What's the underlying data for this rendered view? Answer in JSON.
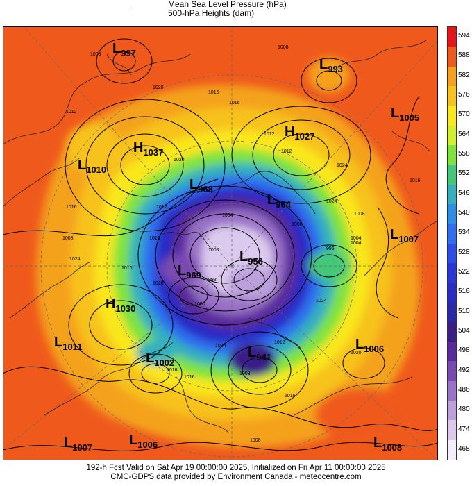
{
  "legend": {
    "line1": "Mean Sea Level Pressure (hPa)",
    "line2": "500-hPa Heights (dam)"
  },
  "colorbar": {
    "ticks": [
      "594",
      "588",
      "582",
      "576",
      "570",
      "564",
      "558",
      "552",
      "546",
      "540",
      "534",
      "528",
      "522",
      "516",
      "510",
      "504",
      "498",
      "492",
      "486",
      "480",
      "474",
      "468"
    ],
    "colors": [
      "#e8141c",
      "#ef5a1c",
      "#f4a21e",
      "#f7c21f",
      "#f9e71f",
      "#d2ef2c",
      "#7fe33c",
      "#45c77a",
      "#36b0bd",
      "#2f8ee8",
      "#2f6ef0",
      "#2b4ee8",
      "#2a36d8",
      "#2a2bc4",
      "#2a27a8",
      "#3a1e88",
      "#5a2a9c",
      "#7a4ab4",
      "#9a72c8",
      "#bca0dc",
      "#dccaee",
      "#f4eefa"
    ]
  },
  "systems": [
    {
      "type": "L",
      "value": "997"
    },
    {
      "type": "L",
      "value": "993"
    },
    {
      "type": "L",
      "value": "1005"
    },
    {
      "type": "H",
      "value": "1027"
    },
    {
      "type": "H",
      "value": "1037"
    },
    {
      "type": "L",
      "value": "1010"
    },
    {
      "type": "L",
      "value": "968"
    },
    {
      "type": "L",
      "value": "964"
    },
    {
      "type": "L",
      "value": "1007"
    },
    {
      "type": "L",
      "value": "956"
    },
    {
      "type": "L",
      "value": "969"
    },
    {
      "type": "H",
      "value": "1030"
    },
    {
      "type": "L",
      "value": "1011"
    },
    {
      "type": "L",
      "value": "1002"
    },
    {
      "type": "L",
      "value": "941"
    },
    {
      "type": "L",
      "value": "1006"
    },
    {
      "type": "L",
      "value": "1007"
    },
    {
      "type": "L",
      "value": "1006"
    },
    {
      "type": "L",
      "value": "1008"
    }
  ],
  "isobar_labels": [
    "1008",
    "1008",
    "1016",
    "1024",
    "1020",
    "1012",
    "1012",
    "1016",
    "1024",
    "1016",
    "1016",
    "1012",
    "1008",
    "1004",
    "996",
    "1004",
    "1008",
    "1016",
    "1024",
    "1020",
    "1016",
    "1008",
    "1004",
    "1000",
    "992",
    "1000",
    "1004",
    "1008",
    "1012",
    "1016",
    "1020",
    "1024",
    "1020",
    "1016",
    "1008",
    "1000",
    "1012",
    "1016"
  ],
  "footer": {
    "line1": "192-h Fcst Valid on Sat Apr 19 00:00:00 2025, Initialized on Fri Apr 11 00:00:00 2025",
    "line2": "CMC-GDPS data provided by Environment Canada - meteocentre.com"
  }
}
